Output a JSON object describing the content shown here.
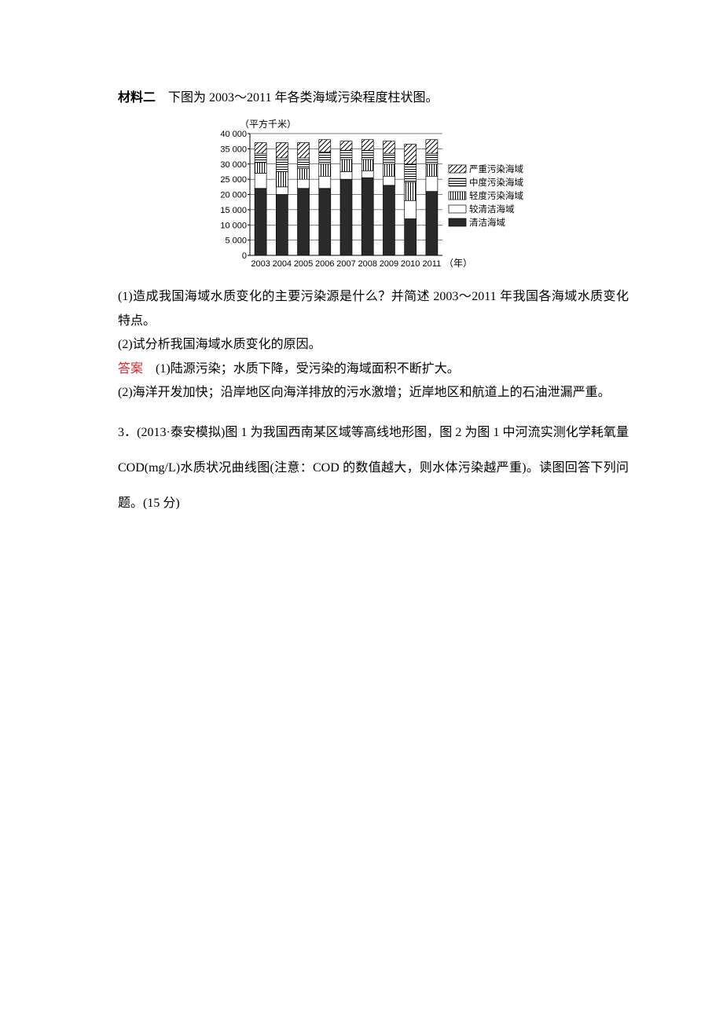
{
  "material": {
    "label": "材料二",
    "caption": "下图为 2003～2011 年各类海域污染程度柱状图。"
  },
  "chart": {
    "type": "stacked-bar",
    "y_axis_label": "（平方千米）",
    "x_axis_label": "（年）",
    "ylim": [
      0,
      40000
    ],
    "ytick_step": 5000,
    "yticks": [
      "0",
      "5 000",
      "10 000",
      "15 000",
      "20 000",
      "25 000",
      "30 000",
      "35 000",
      "40 000"
    ],
    "categories": [
      "2003",
      "2004",
      "2005",
      "2006",
      "2007",
      "2008",
      "2009",
      "2010",
      "2011"
    ],
    "series": [
      {
        "name": "清洁海域",
        "fill": "#2a2a2a",
        "pattern": "solid"
      },
      {
        "name": "较清洁海域",
        "fill": "#ffffff",
        "pattern": "blank"
      },
      {
        "name": "轻度污染海域",
        "fill": "#ffffff",
        "pattern": "vstripe"
      },
      {
        "name": "中度污染海域",
        "fill": "#ffffff",
        "pattern": "hstripe"
      },
      {
        "name": "严重污染海域",
        "fill": "#ffffff",
        "pattern": "diag"
      }
    ],
    "legend_order": [
      "严重污染海域",
      "中度污染海域",
      "轻度污染海域",
      "较清洁海域",
      "清洁海域"
    ],
    "data": {
      "2003": [
        22000,
        5000,
        3500,
        3000,
        3500
      ],
      "2004": [
        20000,
        2500,
        5000,
        4500,
        5000
      ],
      "2005": [
        22000,
        3000,
        3500,
        3500,
        5000
      ],
      "2006": [
        22000,
        4000,
        4000,
        4000,
        4000
      ],
      "2007": [
        25000,
        2500,
        4000,
        3000,
        3000
      ],
      "2008": [
        25500,
        2300,
        3700,
        3000,
        3500
      ],
      "2009": [
        23000,
        3000,
        4000,
        3500,
        4000
      ],
      "2010": [
        12000,
        6000,
        6000,
        6000,
        6500
      ],
      "2011": [
        21000,
        5000,
        4000,
        3500,
        4500
      ]
    },
    "axis_color": "#000000",
    "grid_color": "#000000",
    "background_color": "#ffffff",
    "font_size_axis": 11,
    "font_size_label": 12,
    "bar_width_ratio": 0.55
  },
  "q1": {
    "text": "(1)造成我国海域水质变化的主要污染源是什么？并简述 2003～2011 年我国各海域水质变化特点。"
  },
  "q2": {
    "text": "(2)试分析我国海域水质变化的原因。"
  },
  "answer": {
    "label": "答案",
    "a1": "(1)陆源污染；水质下降，受污染的海域面积不断扩大。",
    "a2": "(2)海洋开发加快；沿岸地区向海洋排放的污水激增；近岸地区和航道上的石油泄漏严重。"
  },
  "q3": {
    "num": "3．",
    "text": "(2013·泰安模拟)图 1 为我国西南某区域等高线地形图，图 2 为图 1 中河流实测化学耗氧量 COD(mg/L)水质状况曲线图(注意：COD 的数值越大，则水体污染越严重)。读图回答下列问题。(15 分)"
  }
}
